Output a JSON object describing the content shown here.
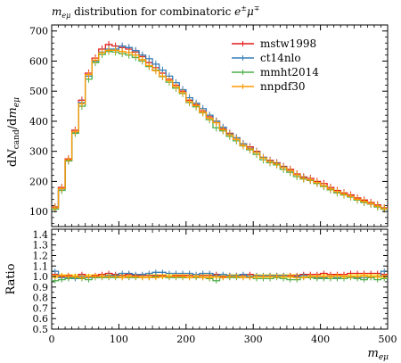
{
  "chart_data": [
    {
      "type": "line",
      "title": "m_eμ distribution for combinatoric e±μ∓",
      "title_parts": {
        "var": "m",
        "sub": "eμ",
        "mid": " distribution for combinatoric ",
        "e": "e",
        "pm": "±",
        "mu": "μ",
        "mp": "∓"
      },
      "xlabel": "",
      "ylabel": "dN_cand / dm_eμ",
      "ylabel_parts": {
        "d1": "d",
        "N": "N",
        "cand": "cand",
        "slash": "/",
        "d2": "d",
        "m": "m",
        "sub": "eμ"
      },
      "xlim": [
        0,
        500
      ],
      "ylim": [
        50,
        720
      ],
      "yticks": [
        100,
        200,
        300,
        400,
        500,
        600,
        700
      ],
      "ytick_labels": [
        "100",
        "200",
        "300",
        "400",
        "500",
        "600",
        "700"
      ],
      "legend_position": "top-right",
      "bin_edges": [
        0,
        10,
        20,
        30,
        40,
        50,
        60,
        70,
        80,
        90,
        100,
        110,
        120,
        130,
        140,
        150,
        160,
        170,
        180,
        190,
        200,
        210,
        220,
        230,
        240,
        250,
        260,
        270,
        280,
        290,
        300,
        310,
        320,
        330,
        340,
        350,
        360,
        370,
        380,
        390,
        400,
        410,
        420,
        430,
        440,
        450,
        460,
        470,
        480,
        490,
        500
      ],
      "series": [
        {
          "name": "mstw1998",
          "color": "#e41a1c",
          "values": [
            115,
            180,
            275,
            370,
            470,
            560,
            610,
            640,
            655,
            650,
            645,
            640,
            630,
            615,
            595,
            578,
            560,
            540,
            520,
            500,
            470,
            455,
            435,
            415,
            400,
            375,
            360,
            345,
            325,
            315,
            300,
            280,
            270,
            262,
            250,
            240,
            225,
            215,
            210,
            200,
            193,
            180,
            170,
            162,
            155,
            145,
            138,
            130,
            122,
            112
          ]
        },
        {
          "name": "ct14nlo",
          "color": "#377eb8",
          "values": [
            112,
            175,
            270,
            362,
            462,
            550,
            600,
            630,
            640,
            640,
            650,
            645,
            635,
            620,
            608,
            590,
            570,
            550,
            528,
            505,
            478,
            460,
            442,
            420,
            400,
            380,
            358,
            345,
            325,
            310,
            298,
            280,
            268,
            260,
            248,
            235,
            222,
            212,
            205,
            195,
            185,
            175,
            165,
            158,
            150,
            140,
            132,
            125,
            118,
            110
          ]
        },
        {
          "name": "mmht2014",
          "color": "#4daf4a",
          "values": [
            108,
            170,
            268,
            360,
            450,
            540,
            595,
            622,
            632,
            630,
            625,
            620,
            612,
            600,
            582,
            570,
            548,
            530,
            510,
            492,
            462,
            448,
            428,
            405,
            378,
            368,
            350,
            335,
            318,
            305,
            290,
            272,
            262,
            255,
            240,
            230,
            216,
            208,
            203,
            193,
            183,
            172,
            162,
            155,
            148,
            138,
            130,
            125,
            115,
            108
          ]
        },
        {
          "name": "nnpdf30",
          "color": "#ff9900",
          "values": [
            112,
            176,
            272,
            365,
            458,
            555,
            603,
            628,
            636,
            636,
            632,
            628,
            620,
            605,
            585,
            568,
            550,
            535,
            515,
            495,
            465,
            452,
            430,
            410,
            395,
            372,
            355,
            340,
            320,
            308,
            296,
            278,
            266,
            258,
            246,
            236,
            222,
            210,
            205,
            196,
            186,
            175,
            166,
            158,
            150,
            141,
            134,
            126,
            118,
            110
          ]
        }
      ]
    },
    {
      "type": "line",
      "title": "",
      "xlabel": "m_eμ",
      "xlabel_parts": {
        "var": "m",
        "sub": "eμ"
      },
      "ylabel": "Ratio",
      "xlim": [
        0,
        500
      ],
      "ylim": [
        0.5,
        1.45
      ],
      "yticks": [
        0.5,
        0.6,
        0.7,
        0.8,
        0.9,
        1.0,
        1.1,
        1.2,
        1.3,
        1.4
      ],
      "ytick_labels": [
        "0.5",
        "0.6",
        "0.7",
        "0.8",
        "0.9",
        "1.0",
        "1.1",
        "1.2",
        "1.3",
        "1.4"
      ],
      "xticks": [
        0,
        100,
        200,
        300,
        400,
        500
      ],
      "xtick_labels": [
        "0",
        "100",
        "200",
        "300",
        "400",
        "500"
      ],
      "band_color": "#ffee00",
      "series": [
        {
          "name": "mstw1998",
          "color": "#e41a1c",
          "values": [
            1.02,
            1.0,
            1.01,
            1.0,
            1.02,
            1.0,
            1.01,
            1.02,
            1.03,
            1.02,
            1.01,
            1.02,
            1.01,
            1.01,
            1.01,
            1.01,
            1.01,
            1.0,
            1.01,
            1.01,
            1.01,
            1.0,
            1.01,
            1.01,
            1.02,
            1.0,
            1.01,
            1.01,
            1.01,
            1.02,
            1.01,
            1.0,
            1.01,
            1.01,
            1.01,
            1.01,
            1.01,
            1.02,
            1.02,
            1.02,
            1.03,
            1.02,
            1.02,
            1.02,
            1.03,
            1.03,
            1.03,
            1.03,
            1.03,
            1.02
          ]
        },
        {
          "name": "ct14nlo",
          "color": "#377eb8",
          "values": [
            1.05,
            0.99,
            0.99,
            0.98,
            1.0,
            0.99,
            0.99,
            1.0,
            1.01,
            1.01,
            1.03,
            1.03,
            1.02,
            1.02,
            1.03,
            1.04,
            1.04,
            1.03,
            1.03,
            1.03,
            1.03,
            1.02,
            1.03,
            1.03,
            1.01,
            1.02,
            1.01,
            1.01,
            1.02,
            1.0,
            1.01,
            1.01,
            1.01,
            1.01,
            1.01,
            1.0,
            1.0,
            1.01,
            1.0,
            0.99,
            0.99,
            1.0,
            0.99,
            1.0,
            1.0,
            0.99,
            0.99,
            0.99,
            1.0,
            1.05
          ]
        },
        {
          "name": "mmht2014",
          "color": "#4daf4a",
          "values": [
            0.96,
            0.97,
            0.98,
            0.99,
            0.98,
            0.97,
            0.99,
            0.99,
            0.99,
            0.99,
            0.99,
            0.99,
            0.99,
            0.99,
            0.99,
            1.0,
            1.0,
            0.99,
            0.99,
            0.99,
            0.99,
            0.99,
            0.99,
            0.98,
            0.96,
            0.99,
            0.99,
            0.99,
            0.99,
            0.99,
            0.98,
            0.98,
            0.98,
            0.99,
            0.98,
            0.97,
            0.97,
            0.99,
            0.99,
            0.98,
            0.98,
            0.98,
            0.98,
            0.98,
            0.99,
            0.98,
            0.97,
            0.99,
            0.97,
            0.98
          ]
        },
        {
          "name": "nnpdf30",
          "color": "#ff9900",
          "values": [
            1.0,
            1.01,
            1.0,
            1.0,
            0.99,
            1.0,
            1.0,
            1.0,
            1.0,
            1.0,
            0.99,
            1.0,
            1.0,
            0.99,
            0.99,
            0.99,
            1.0,
            1.0,
            1.0,
            1.0,
            0.99,
            1.0,
            0.99,
            0.99,
            1.0,
            0.99,
            1.0,
            1.0,
            0.99,
            0.99,
            1.0,
            1.0,
            1.0,
            1.0,
            1.0,
            1.0,
            0.99,
            0.99,
            1.0,
            1.0,
            1.0,
            1.0,
            1.01,
            1.0,
            1.0,
            1.0,
            1.01,
            1.0,
            1.0,
            1.0
          ]
        }
      ]
    }
  ]
}
